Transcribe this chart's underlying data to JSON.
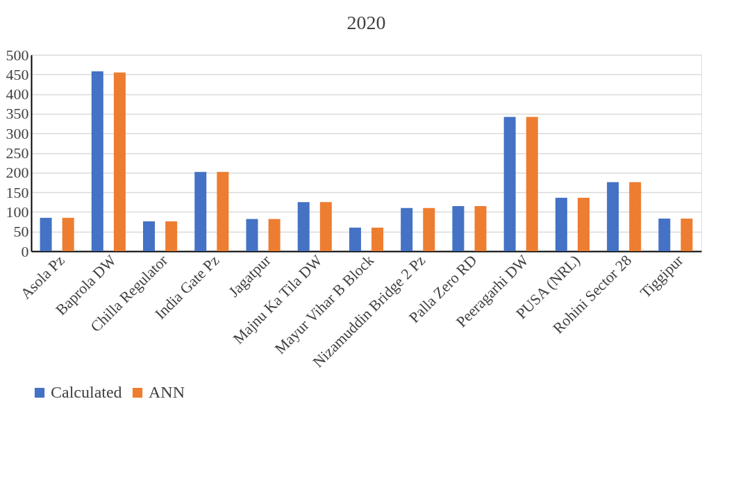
{
  "chart_data": {
    "type": "bar",
    "title": "2020",
    "categories": [
      "Asola Pz",
      "Baprola DW",
      "Chilla Regulator",
      "India Gate Pz",
      "Jagatpur",
      "Majnu Ka Tila DW",
      "Mayur Vihar B Block",
      "Nizamuddin Bridge 2 Pz",
      "Palla Zero RD",
      "Peeragarhi DW",
      "PUSA (NRL)",
      "Rohini Sector 28",
      "Tiggipur"
    ],
    "series": [
      {
        "name": "Calculated",
        "color": "#4472c4",
        "values": [
          85,
          458,
          76,
          202,
          82,
          125,
          60,
          110,
          115,
          342,
          136,
          176,
          83
        ]
      },
      {
        "name": "ANN",
        "color": "#ed7d31",
        "values": [
          85,
          455,
          76,
          202,
          82,
          125,
          60,
          110,
          115,
          342,
          136,
          176,
          83
        ]
      }
    ],
    "ylim": [
      0,
      500
    ],
    "yticks": [
      0,
      50,
      100,
      150,
      200,
      250,
      300,
      350,
      400,
      450,
      500
    ],
    "grid": "y",
    "legend": "bottom"
  }
}
